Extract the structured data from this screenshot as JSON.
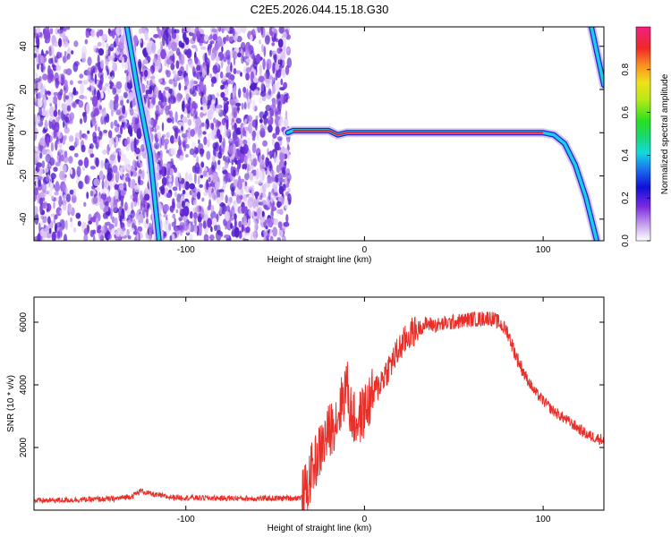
{
  "title": "C2E5.2026.044.15.18.G30",
  "colors": {
    "snr_line": "#e8302a",
    "ridge_red": "#e8202a",
    "scatter_purple": "#6a2ad8",
    "background": "#ffffff"
  },
  "chart_data": [
    {
      "type": "heatmap",
      "name": "spectrogram",
      "xlabel": "Height of straight line (km)",
      "ylabel": "Frequency (Hz)",
      "xlim": [
        -185,
        134
      ],
      "ylim": [
        -50,
        49
      ],
      "x_ticks": [
        -100,
        0,
        100
      ],
      "y_ticks": [
        -40,
        -20,
        0,
        20,
        40
      ],
      "grid": false,
      "colorbar": {
        "label": "Normalized spectral amplitude",
        "range": [
          0.0,
          1.0
        ],
        "ticks": [
          0.0,
          0.2,
          0.4,
          0.6,
          0.8
        ]
      },
      "noise_region_x": [
        -185,
        -42
      ],
      "ridges": [
        {
          "name": "carrier-ridge",
          "points": [
            [
              -43,
              0
            ],
            [
              -40,
              1
            ],
            [
              -35,
              1
            ],
            [
              -20,
              1
            ],
            [
              -15,
              -1
            ],
            [
              -10,
              0
            ],
            [
              0,
              0
            ],
            [
              50,
              0
            ],
            [
              100,
              0
            ],
            [
              106,
              -1
            ],
            [
              112,
              -5
            ],
            [
              118,
              -15
            ],
            [
              124,
              -30
            ],
            [
              130,
              -50
            ]
          ]
        },
        {
          "name": "left-diagonal-ridge",
          "points": [
            [
              -133,
              49
            ],
            [
              -127,
              20
            ],
            [
              -120,
              -10
            ],
            [
              -115,
              -50
            ]
          ]
        },
        {
          "name": "right-edge-ridge",
          "points": [
            [
              127,
              49
            ],
            [
              134,
              22
            ]
          ]
        }
      ]
    },
    {
      "type": "line",
      "name": "snr",
      "xlabel": "Height of straight line (km)",
      "ylabel": "SNR (10 * v/v)",
      "xlim": [
        -185,
        134
      ],
      "ylim": [
        0,
        6800
      ],
      "x_ticks": [
        -100,
        0,
        100
      ],
      "y_ticks": [
        2000,
        4000,
        6000
      ],
      "grid": false,
      "series": [
        {
          "name": "SNR",
          "x": [
            -185,
            -170,
            -155,
            -140,
            -130,
            -125,
            -120,
            -110,
            -100,
            -90,
            -80,
            -70,
            -60,
            -50,
            -40,
            -35,
            -32,
            -30,
            -25,
            -20,
            -15,
            -12,
            -10,
            -8,
            -5,
            -2,
            0,
            5,
            10,
            15,
            20,
            25,
            30,
            35,
            40,
            45,
            50,
            55,
            60,
            65,
            70,
            75,
            80,
            85,
            90,
            95,
            100,
            105,
            110,
            115,
            120,
            125,
            130,
            134
          ],
          "values": [
            300,
            320,
            340,
            360,
            450,
            620,
            520,
            420,
            400,
            390,
            380,
            380,
            370,
            380,
            390,
            400,
            700,
            1200,
            1900,
            2500,
            3000,
            3600,
            4100,
            3200,
            2800,
            3000,
            3200,
            3700,
            4200,
            4700,
            5200,
            5600,
            5800,
            5950,
            5900,
            5950,
            6000,
            6050,
            6100,
            6100,
            6150,
            6000,
            5700,
            4900,
            4300,
            3800,
            3500,
            3200,
            3000,
            2800,
            2600,
            2400,
            2300,
            2250
          ]
        }
      ]
    }
  ]
}
